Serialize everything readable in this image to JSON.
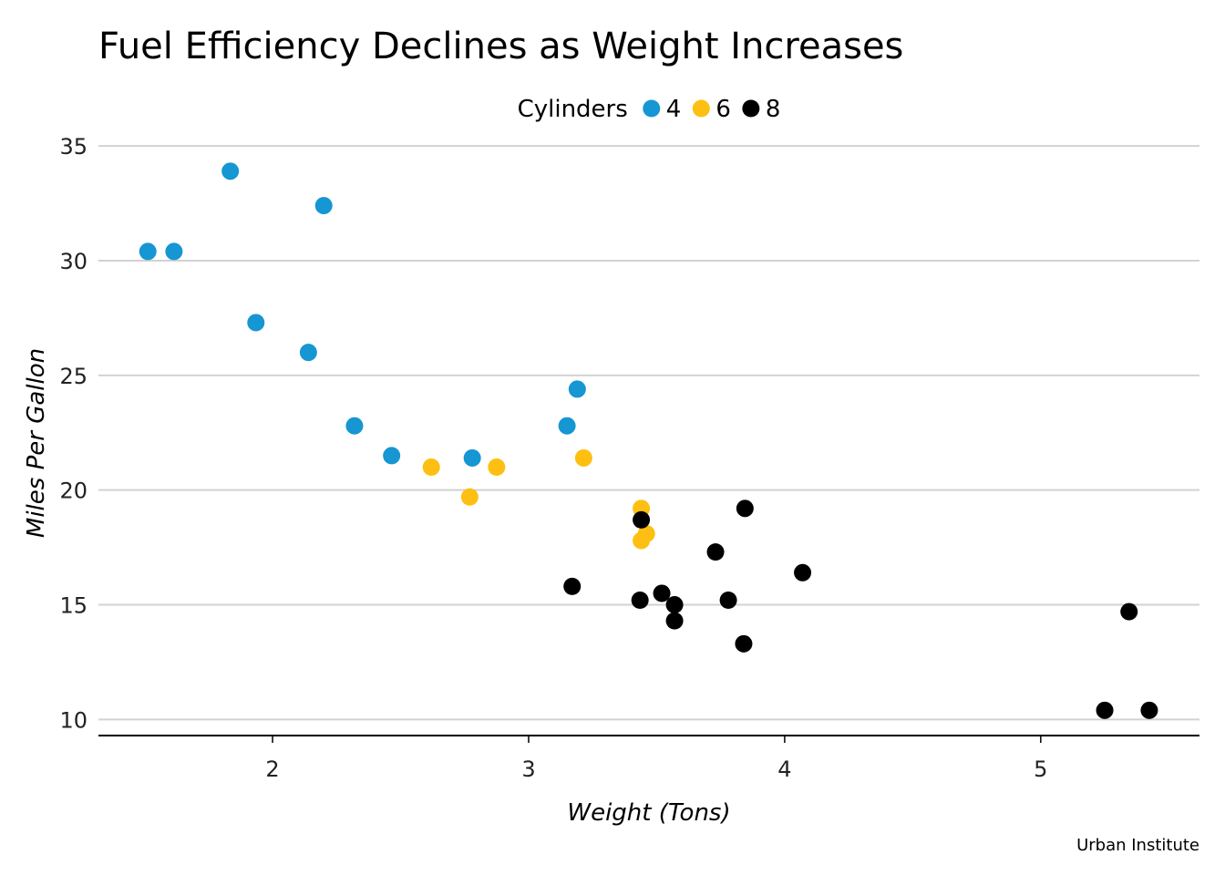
{
  "chart_data": {
    "type": "scatter",
    "title": "Fuel Efficiency Declines as Weight Increases",
    "xlabel": "Weight (Tons)",
    "ylabel": "Miles Per Gallon",
    "caption": "Urban Institute",
    "legend": {
      "title": "Cylinders",
      "placement": "top",
      "items": [
        {
          "label": "4",
          "color": "#1696d2"
        },
        {
          "label": "6",
          "color": "#fdbf11"
        },
        {
          "label": "8",
          "color": "#000000"
        }
      ]
    },
    "xlim": [
      1.32,
      5.62
    ],
    "ylim": [
      9.3,
      35.8
    ],
    "xticks": [
      2,
      3,
      4,
      5
    ],
    "yticks": [
      10,
      15,
      20,
      25,
      30,
      35
    ],
    "grid": "horizontal",
    "series": [
      {
        "name": "4",
        "color": "#1696d2",
        "points": [
          [
            1.513,
            30.4
          ],
          [
            1.615,
            30.4
          ],
          [
            1.835,
            33.9
          ],
          [
            1.935,
            27.3
          ],
          [
            2.14,
            26.0
          ],
          [
            2.2,
            32.4
          ],
          [
            2.32,
            22.8
          ],
          [
            2.465,
            21.5
          ],
          [
            2.78,
            21.4
          ],
          [
            3.15,
            22.8
          ],
          [
            3.19,
            24.4
          ]
        ]
      },
      {
        "name": "6",
        "color": "#fdbf11",
        "points": [
          [
            2.62,
            21.0
          ],
          [
            2.77,
            19.7
          ],
          [
            2.875,
            21.0
          ],
          [
            3.215,
            21.4
          ],
          [
            3.44,
            19.2
          ],
          [
            3.44,
            17.8
          ],
          [
            3.46,
            18.1
          ]
        ]
      },
      {
        "name": "8",
        "color": "#000000",
        "points": [
          [
            3.17,
            15.8
          ],
          [
            3.435,
            15.2
          ],
          [
            3.44,
            18.7
          ],
          [
            3.52,
            15.5
          ],
          [
            3.57,
            15.0
          ],
          [
            3.57,
            14.3
          ],
          [
            3.73,
            17.3
          ],
          [
            3.78,
            15.2
          ],
          [
            3.84,
            13.3
          ],
          [
            3.845,
            19.2
          ],
          [
            4.07,
            16.4
          ],
          [
            5.25,
            10.4
          ],
          [
            5.345,
            14.7
          ],
          [
            5.424,
            10.4
          ]
        ]
      }
    ]
  }
}
